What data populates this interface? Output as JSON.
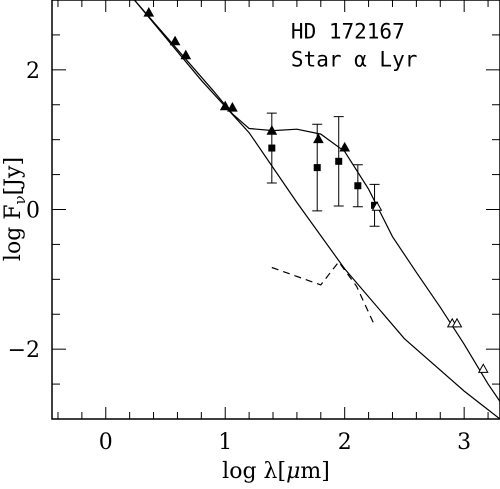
{
  "chart_data": {
    "type": "scatter",
    "title": "",
    "xlabel_parts": {
      "pre": "log λ[",
      "mu": "μ",
      "post": "m]"
    },
    "ylabel_parts": {
      "pre": "log F",
      "sub": "ν",
      "post": "[Jy]"
    },
    "xlim": [
      -0.45,
      3.3
    ],
    "ylim": [
      -3.0,
      3.0
    ],
    "x_ticks": [
      0,
      1,
      2,
      3
    ],
    "x_tick_labels": [
      "0",
      "1",
      "2",
      "3"
    ],
    "y_ticks": [
      -2,
      0,
      2
    ],
    "y_tick_labels": [
      "−2",
      "0",
      "2"
    ],
    "annotations": [
      {
        "text": "HD 172167",
        "x": 1.55,
        "y": 2.45
      },
      {
        "text": "Star α Lyr",
        "x": 1.55,
        "y": 2.05
      }
    ],
    "series": [
      {
        "marker": "filled-triangle",
        "points": [
          {
            "x": 0.36,
            "y": 2.82
          },
          {
            "x": 0.58,
            "y": 2.41
          },
          {
            "x": 0.67,
            "y": 2.21
          },
          {
            "x": 1.0,
            "y": 1.48
          },
          {
            "x": 1.06,
            "y": 1.46
          },
          {
            "x": 1.39,
            "y": 1.13
          },
          {
            "x": 1.78,
            "y": 1.01
          },
          {
            "x": 2.0,
            "y": 0.89
          }
        ]
      },
      {
        "marker": "filled-square",
        "points": [
          {
            "x": 1.39,
            "y": 0.88,
            "err": 0.5
          },
          {
            "x": 1.77,
            "y": 0.6,
            "err": 0.62
          },
          {
            "x": 1.95,
            "y": 0.69,
            "err": 0.64
          },
          {
            "x": 2.11,
            "y": 0.34,
            "err": 0.3
          },
          {
            "x": 2.25,
            "y": 0.06,
            "err": 0.3
          }
        ]
      },
      {
        "marker": "open-triangle",
        "points": [
          {
            "x": 2.27,
            "y": 0.04
          },
          {
            "x": 2.9,
            "y": -1.63
          },
          {
            "x": 2.94,
            "y": -1.63
          },
          {
            "x": 3.16,
            "y": -2.28
          }
        ]
      }
    ],
    "lines": [
      {
        "style": "solid",
        "points": [
          [
            0.24,
            3.0
          ],
          [
            0.9,
            1.7
          ],
          [
            1.06,
            1.37
          ],
          [
            1.2,
            1.16
          ],
          [
            1.4,
            1.13
          ],
          [
            1.6,
            1.15
          ],
          [
            1.8,
            1.08
          ],
          [
            2.0,
            0.83
          ],
          [
            2.2,
            0.29
          ],
          [
            2.4,
            -0.39
          ],
          [
            2.6,
            -0.9
          ],
          [
            2.8,
            -1.4
          ],
          [
            3.0,
            -1.93
          ],
          [
            3.2,
            -2.5
          ],
          [
            3.3,
            -2.75
          ]
        ]
      },
      {
        "style": "solid",
        "points": [
          [
            0.24,
            3.0
          ],
          [
            0.8,
            1.85
          ],
          [
            1.2,
            1.1
          ],
          [
            1.6,
            0.1
          ],
          [
            2.0,
            -0.85
          ],
          [
            2.5,
            -1.85
          ],
          [
            3.0,
            -2.6
          ],
          [
            3.3,
            -3.0
          ]
        ]
      },
      {
        "style": "dashed",
        "points": [
          [
            1.39,
            -0.83
          ],
          [
            1.8,
            -1.08
          ],
          [
            1.95,
            -0.75
          ],
          [
            2.1,
            -1.1
          ],
          [
            2.25,
            -1.66
          ]
        ]
      }
    ],
    "grid": false,
    "legend": "none"
  }
}
